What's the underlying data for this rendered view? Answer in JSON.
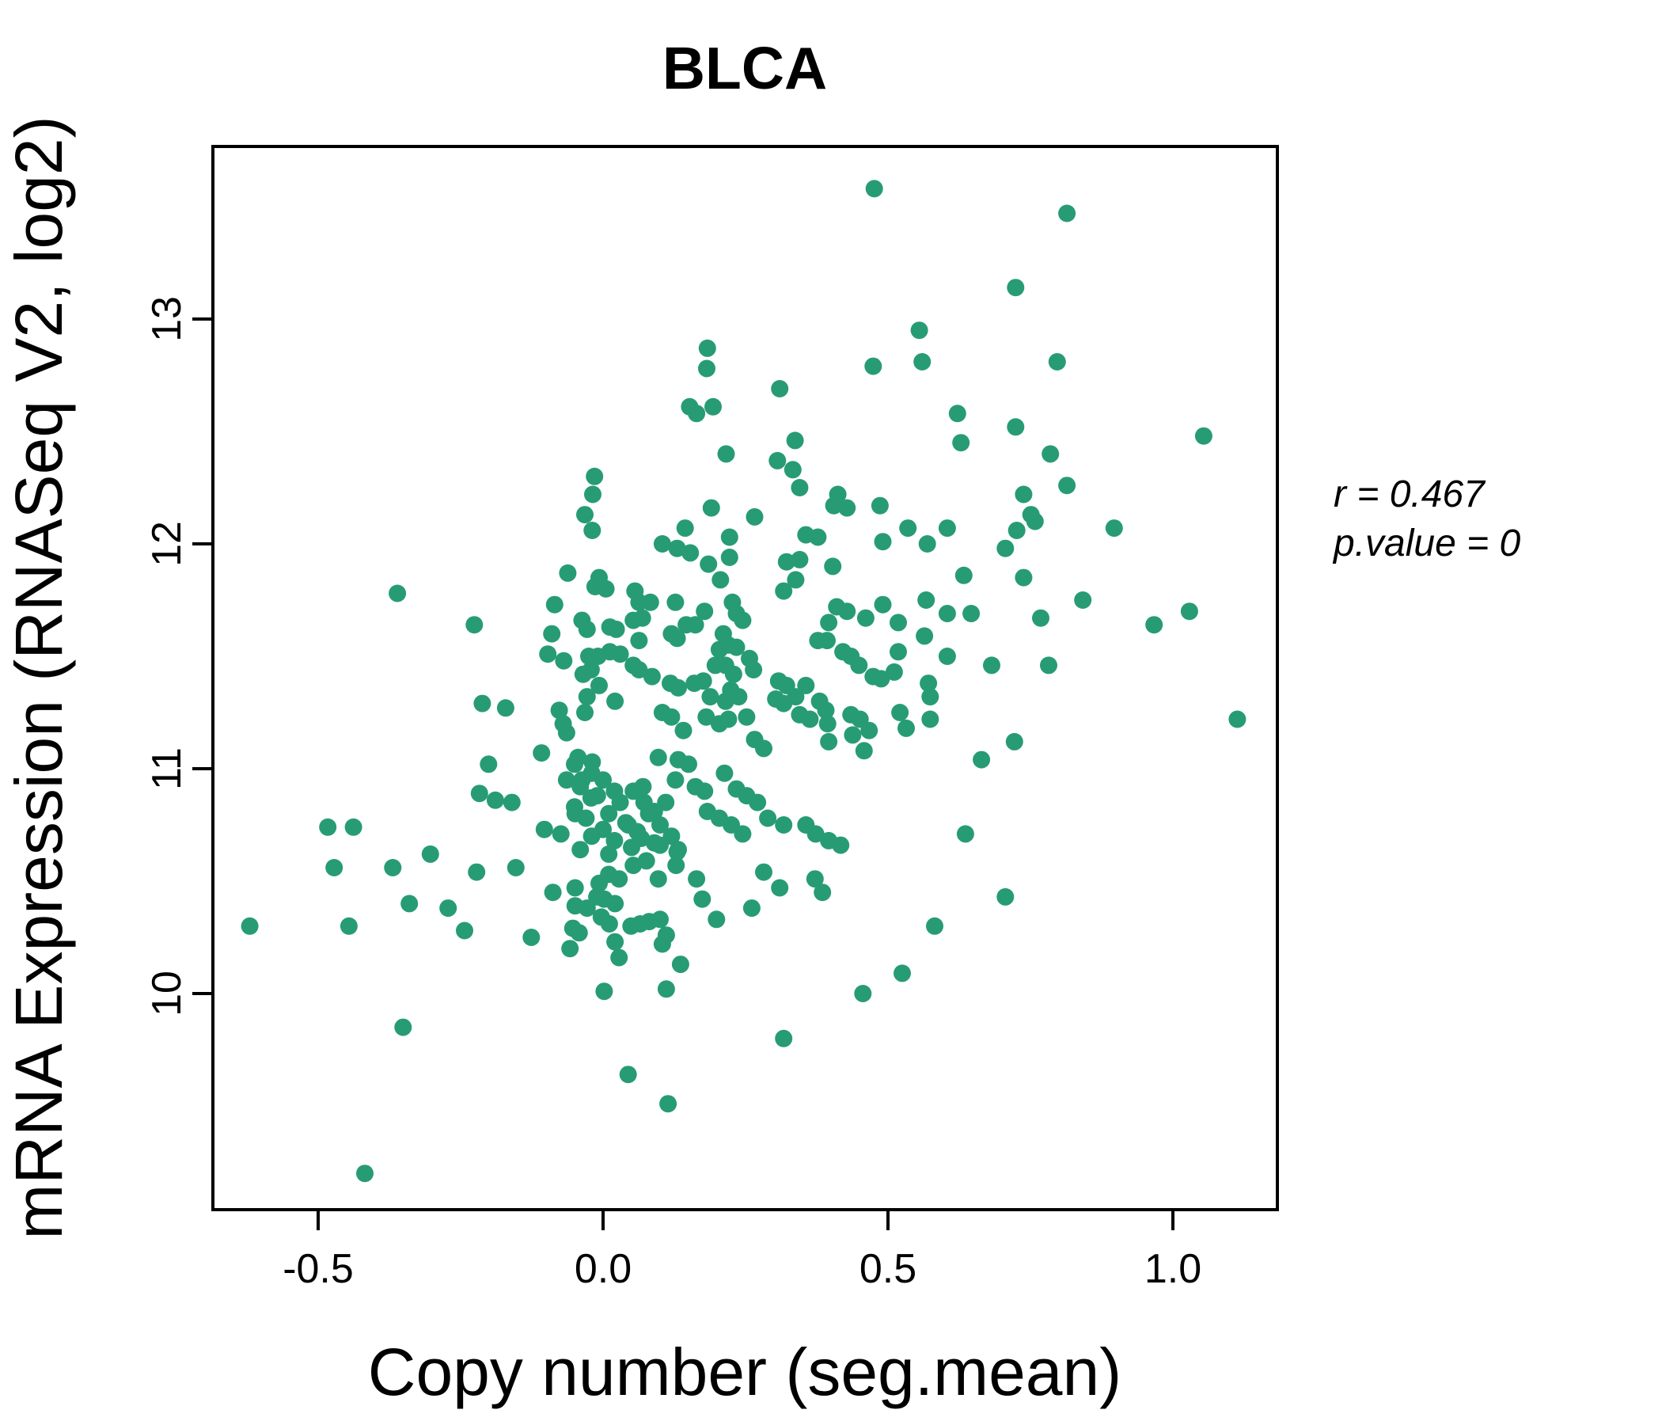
{
  "title": {
    "text": "BLCA",
    "color": "#279c74"
  },
  "annotation": {
    "line1": "r = 0.467",
    "line2": "p.value = 0"
  },
  "axes": {
    "x": {
      "label": "Copy number (seg.mean)",
      "tick_labels": [
        "-0.5",
        "0.0",
        "0.5",
        "1.0"
      ],
      "tick_values": [
        -0.5,
        0.0,
        0.5,
        1.0
      ]
    },
    "y": {
      "label": "mRNA Expression (RNASeq V2, log2)",
      "tick_labels": [
        "10",
        "11",
        "12",
        "13"
      ],
      "tick_values": [
        10,
        11,
        12,
        13
      ]
    }
  },
  "chart_data": {
    "type": "scatter",
    "title": "BLCA",
    "xlabel": "Copy number (seg.mean)",
    "ylabel": "mRNA Expression (RNASeq V2, log2)",
    "xlim": [
      -0.685,
      1.183
    ],
    "ylim": [
      9.04,
      13.77
    ],
    "xticks": [
      -0.5,
      0.0,
      0.5,
      1.0
    ],
    "yticks": [
      10,
      11,
      12,
      13
    ],
    "grid": false,
    "legend": null,
    "point_color": "#279c74",
    "annotations": [
      "r = 0.467",
      "p.value = 0"
    ],
    "points": [
      [
        0.476,
        13.58
      ],
      [
        0.814,
        13.47
      ],
      [
        0.724,
        13.14
      ],
      [
        0.555,
        12.95
      ],
      [
        0.183,
        12.87
      ],
      [
        0.182,
        12.78
      ],
      [
        0.31,
        12.69
      ],
      [
        0.152,
        12.61
      ],
      [
        0.164,
        12.58
      ],
      [
        0.193,
        12.61
      ],
      [
        0.216,
        12.4
      ],
      [
        0.306,
        12.37
      ],
      [
        0.337,
        12.46
      ],
      [
        0.333,
        12.33
      ],
      [
        0.345,
        12.25
      ],
      [
        -0.015,
        12.3
      ],
      [
        -0.018,
        12.22
      ],
      [
        0.412,
        12.22
      ],
      [
        0.474,
        12.79
      ],
      [
        0.56,
        12.81
      ],
      [
        0.797,
        12.81
      ],
      [
        0.622,
        12.58
      ],
      [
        0.724,
        12.52
      ],
      [
        0.628,
        12.45
      ],
      [
        0.785,
        12.4
      ],
      [
        0.814,
        12.26
      ],
      [
        0.738,
        12.22
      ],
      [
        1.054,
        12.48
      ],
      [
        0.604,
        12.07
      ],
      [
        0.569,
        12.0
      ],
      [
        0.751,
        12.13
      ],
      [
        0.758,
        12.1
      ],
      [
        0.726,
        12.06
      ],
      [
        0.706,
        11.98
      ],
      [
        0.897,
        12.07
      ],
      [
        0.633,
        11.86
      ],
      [
        0.738,
        11.85
      ],
      [
        0.842,
        11.75
      ],
      [
        0.567,
        11.75
      ],
      [
        0.604,
        11.69
      ],
      [
        0.646,
        11.69
      ],
      [
        0.768,
        11.67
      ],
      [
        0.967,
        11.64
      ],
      [
        1.029,
        11.7
      ],
      [
        0.564,
        11.59
      ],
      [
        0.604,
        11.5
      ],
      [
        0.682,
        11.46
      ],
      [
        0.782,
        11.46
      ],
      [
        0.571,
        11.38
      ],
      [
        0.574,
        11.32
      ],
      [
        0.574,
        11.22
      ],
      [
        1.113,
        11.22
      ],
      [
        0.722,
        11.12
      ],
      [
        0.664,
        11.04
      ],
      [
        0.636,
        10.71
      ],
      [
        -0.361,
        11.78
      ],
      [
        -0.226,
        11.64
      ],
      [
        -0.085,
        11.73
      ],
      [
        -0.09,
        11.6
      ],
      [
        -0.097,
        11.51
      ],
      [
        -0.069,
        11.48
      ],
      [
        -0.062,
        11.87
      ],
      [
        -0.212,
        11.29
      ],
      [
        -0.171,
        11.27
      ],
      [
        -0.077,
        11.26
      ],
      [
        -0.07,
        11.2
      ],
      [
        -0.064,
        11.16
      ],
      [
        -0.108,
        11.07
      ],
      [
        -0.201,
        11.02
      ],
      [
        -0.217,
        10.89
      ],
      [
        -0.189,
        10.86
      ],
      [
        -0.16,
        10.85
      ],
      [
        -0.483,
        10.74
      ],
      [
        -0.438,
        10.74
      ],
      [
        -0.303,
        10.62
      ],
      [
        -0.103,
        10.73
      ],
      [
        -0.074,
        10.71
      ],
      [
        -0.064,
        10.95
      ],
      [
        -0.472,
        10.56
      ],
      [
        -0.369,
        10.56
      ],
      [
        -0.222,
        10.54
      ],
      [
        -0.153,
        10.56
      ],
      [
        -0.34,
        10.4
      ],
      [
        -0.272,
        10.38
      ],
      [
        -0.446,
        10.3
      ],
      [
        -0.243,
        10.28
      ],
      [
        -0.62,
        10.3
      ],
      [
        -0.088,
        10.45
      ],
      [
        -0.126,
        10.25
      ],
      [
        -0.351,
        9.85
      ],
      [
        -0.418,
        9.2
      ],
      [
        -0.049,
        10.47
      ],
      [
        -0.049,
        10.39
      ],
      [
        -0.028,
        10.38
      ],
      [
        -0.053,
        10.29
      ],
      [
        -0.042,
        10.27
      ],
      [
        -0.058,
        10.2
      ],
      [
        0.01,
        10.53
      ],
      [
        0.028,
        10.51
      ],
      [
        -0.007,
        10.49
      ],
      [
        -0.011,
        10.43
      ],
      [
        0.002,
        10.42
      ],
      [
        0.021,
        10.4
      ],
      [
        -0.003,
        10.34
      ],
      [
        0.011,
        10.31
      ],
      [
        0.053,
        10.57
      ],
      [
        0.076,
        10.59
      ],
      [
        0.097,
        10.51
      ],
      [
        0.128,
        10.57
      ],
      [
        0.049,
        10.3
      ],
      [
        0.065,
        10.31
      ],
      [
        0.081,
        10.32
      ],
      [
        0.1,
        10.33
      ],
      [
        0.111,
        10.26
      ],
      [
        0.104,
        10.22
      ],
      [
        0.021,
        10.23
      ],
      [
        0.028,
        10.16
      ],
      [
        0.136,
        10.13
      ],
      [
        0.164,
        10.51
      ],
      [
        0.174,
        10.42
      ],
      [
        0.199,
        10.33
      ],
      [
        0.261,
        10.38
      ],
      [
        0.282,
        10.54
      ],
      [
        0.31,
        10.47
      ],
      [
        0.372,
        10.51
      ],
      [
        0.385,
        10.45
      ],
      [
        0.002,
        10.01
      ],
      [
        0.111,
        10.02
      ],
      [
        0.456,
        10.0
      ],
      [
        0.525,
        10.09
      ],
      [
        0.317,
        9.8
      ],
      [
        0.044,
        9.64
      ],
      [
        0.114,
        9.51
      ],
      [
        0.706,
        10.43
      ],
      [
        0.582,
        10.3
      ],
      [
        -0.032,
        12.13
      ],
      [
        -0.019,
        12.06
      ],
      [
        0.19,
        12.16
      ],
      [
        0.266,
        12.12
      ],
      [
        0.405,
        12.17
      ],
      [
        0.428,
        12.16
      ],
      [
        0.486,
        12.17
      ],
      [
        0.144,
        12.07
      ],
      [
        0.222,
        12.03
      ],
      [
        0.104,
        12.0
      ],
      [
        0.13,
        11.98
      ],
      [
        0.153,
        11.96
      ],
      [
        0.356,
        12.04
      ],
      [
        0.377,
        12.03
      ],
      [
        0.345,
        11.93
      ],
      [
        0.403,
        11.9
      ],
      [
        0.491,
        12.01
      ],
      [
        0.535,
        12.07
      ],
      [
        0.185,
        11.91
      ],
      [
        0.222,
        11.94
      ],
      [
        0.206,
        11.84
      ],
      [
        0.338,
        11.84
      ],
      [
        0.317,
        11.79
      ],
      [
        0.322,
        11.92
      ],
      [
        -0.007,
        11.85
      ],
      [
        0.005,
        11.8
      ],
      [
        -0.014,
        11.81
      ],
      [
        0.056,
        11.79
      ],
      [
        0.063,
        11.74
      ],
      [
        0.083,
        11.74
      ],
      [
        0.127,
        11.74
      ],
      [
        0.178,
        11.7
      ],
      [
        0.227,
        11.74
      ],
      [
        0.234,
        11.69
      ],
      [
        0.245,
        11.66
      ],
      [
        -0.037,
        11.66
      ],
      [
        -0.028,
        11.62
      ],
      [
        0.012,
        11.63
      ],
      [
        0.023,
        11.62
      ],
      [
        0.053,
        11.66
      ],
      [
        0.069,
        11.67
      ],
      [
        0.146,
        11.64
      ],
      [
        0.162,
        11.64
      ],
      [
        0.12,
        11.6
      ],
      [
        0.13,
        11.58
      ],
      [
        0.063,
        11.57
      ],
      [
        0.211,
        11.6
      ],
      [
        0.22,
        11.55
      ],
      [
        0.204,
        11.53
      ],
      [
        0.234,
        11.54
      ],
      [
        0.41,
        11.72
      ],
      [
        0.428,
        11.7
      ],
      [
        0.461,
        11.67
      ],
      [
        0.491,
        11.73
      ],
      [
        0.518,
        11.65
      ],
      [
        0.396,
        11.65
      ],
      [
        0.377,
        11.57
      ],
      [
        0.393,
        11.57
      ],
      [
        0.421,
        11.52
      ],
      [
        0.435,
        11.5
      ],
      [
        0.449,
        11.46
      ],
      [
        0.474,
        11.41
      ],
      [
        0.518,
        11.52
      ],
      [
        -0.025,
        11.5
      ],
      [
        -0.009,
        11.5
      ],
      [
        0.012,
        11.52
      ],
      [
        0.03,
        11.51
      ],
      [
        -0.021,
        11.44
      ],
      [
        -0.035,
        11.42
      ],
      [
        -0.007,
        11.37
      ],
      [
        -0.028,
        11.32
      ],
      [
        0.021,
        11.3
      ],
      [
        0.053,
        11.46
      ],
      [
        0.063,
        11.44
      ],
      [
        0.086,
        11.41
      ],
      [
        0.118,
        11.38
      ],
      [
        0.132,
        11.36
      ],
      [
        0.104,
        11.25
      ],
      [
        0.12,
        11.23
      ],
      [
        0.141,
        11.17
      ],
      [
        0.16,
        11.38
      ],
      [
        0.176,
        11.39
      ],
      [
        0.197,
        11.46
      ],
      [
        0.215,
        11.46
      ],
      [
        0.229,
        11.42
      ],
      [
        0.257,
        11.49
      ],
      [
        0.264,
        11.44
      ],
      [
        0.224,
        11.35
      ],
      [
        0.238,
        11.32
      ],
      [
        0.215,
        11.3
      ],
      [
        0.188,
        11.32
      ],
      [
        0.181,
        11.23
      ],
      [
        0.204,
        11.2
      ],
      [
        0.22,
        11.22
      ],
      [
        0.252,
        11.23
      ],
      [
        0.266,
        11.13
      ],
      [
        0.282,
        11.09
      ],
      [
        0.308,
        11.39
      ],
      [
        0.322,
        11.37
      ],
      [
        0.303,
        11.31
      ],
      [
        0.317,
        11.29
      ],
      [
        0.338,
        11.32
      ],
      [
        0.356,
        11.37
      ],
      [
        0.38,
        11.3
      ],
      [
        0.391,
        11.26
      ],
      [
        0.345,
        11.24
      ],
      [
        0.363,
        11.22
      ],
      [
        0.394,
        11.2
      ],
      [
        0.435,
        11.24
      ],
      [
        0.451,
        11.22
      ],
      [
        0.467,
        11.17
      ],
      [
        0.488,
        11.4
      ],
      [
        0.511,
        11.43
      ],
      [
        0.396,
        11.12
      ],
      [
        0.438,
        11.15
      ],
      [
        0.458,
        11.08
      ],
      [
        0.521,
        11.25
      ],
      [
        0.532,
        11.18
      ],
      [
        -0.032,
        11.25
      ],
      [
        -0.05,
        11.02
      ],
      [
        -0.02,
        10.98
      ],
      [
        0.0,
        10.95
      ],
      [
        -0.04,
        10.92
      ],
      [
        0.02,
        10.9
      ],
      [
        -0.01,
        10.88
      ],
      [
        0.03,
        10.85
      ],
      [
        -0.05,
        10.83
      ],
      [
        0.01,
        10.8
      ],
      [
        -0.03,
        10.78
      ],
      [
        0.04,
        10.76
      ],
      [
        0.0,
        10.73
      ],
      [
        -0.02,
        10.7
      ],
      [
        0.02,
        10.68
      ],
      [
        0.05,
        10.65
      ],
      [
        -0.04,
        10.64
      ],
      [
        0.01,
        10.62
      ],
      [
        0.06,
        10.72
      ],
      [
        0.08,
        10.8
      ],
      [
        0.07,
        10.92
      ],
      [
        0.09,
        10.67
      ],
      [
        0.1,
        10.75
      ],
      [
        0.12,
        10.7
      ],
      [
        0.11,
        10.85
      ],
      [
        0.13,
        10.63
      ],
      [
        -0.044,
        11.05
      ],
      [
        -0.019,
        11.03
      ],
      [
        -0.037,
        10.95
      ],
      [
        -0.021,
        10.87
      ],
      [
        -0.049,
        10.8
      ],
      [
        0.097,
        11.05
      ],
      [
        0.132,
        11.04
      ],
      [
        0.15,
        11.02
      ],
      [
        0.127,
        10.95
      ],
      [
        0.162,
        10.92
      ],
      [
        0.178,
        10.9
      ],
      [
        0.213,
        10.98
      ],
      [
        0.234,
        10.91
      ],
      [
        0.252,
        10.88
      ],
      [
        0.271,
        10.85
      ],
      [
        0.289,
        10.78
      ],
      [
        0.317,
        10.75
      ],
      [
        0.356,
        10.75
      ],
      [
        0.373,
        10.71
      ],
      [
        0.396,
        10.68
      ],
      [
        0.417,
        10.66
      ],
      [
        0.204,
        10.78
      ],
      [
        0.225,
        10.75
      ],
      [
        0.245,
        10.71
      ],
      [
        0.053,
        10.9
      ],
      [
        0.072,
        10.85
      ],
      [
        0.09,
        10.81
      ],
      [
        0.044,
        10.75
      ],
      [
        0.067,
        10.69
      ],
      [
        0.1,
        10.66
      ],
      [
        0.132,
        10.64
      ],
      [
        0.183,
        10.81
      ]
    ]
  },
  "layout_colors": {
    "axis": "#000000",
    "background": "#ffffff"
  }
}
